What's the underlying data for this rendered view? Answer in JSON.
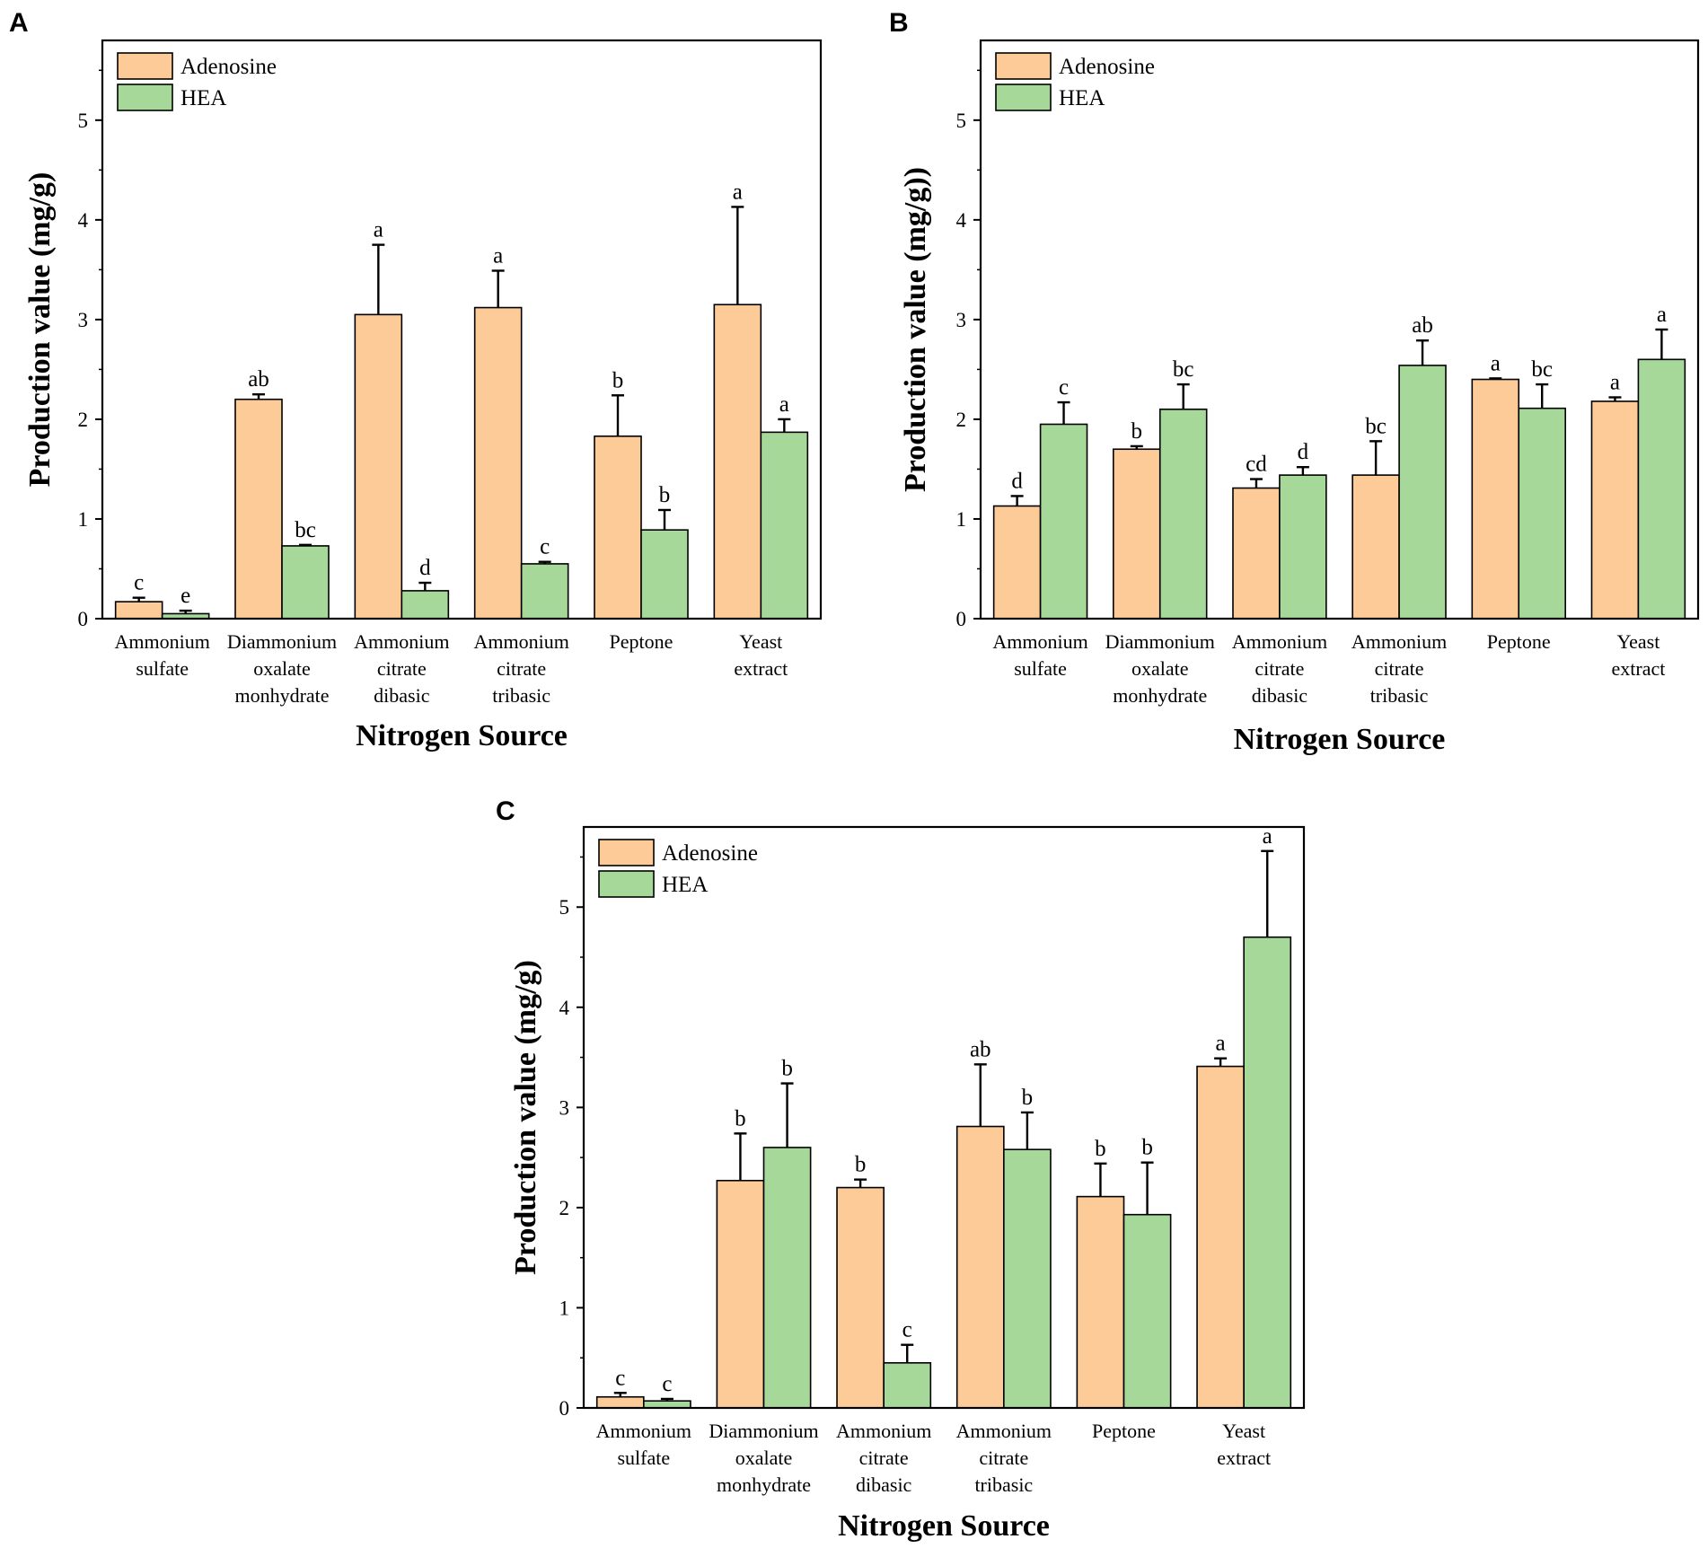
{
  "colors": {
    "adenosine": "#fdcb98",
    "hea": "#a6d89a",
    "axis": "#000000"
  },
  "chart_data": [
    {
      "panel": "A",
      "type": "bar",
      "title": "",
      "xlabel": "Nitrogen Source",
      "ylabel": "Production value (mg/g)",
      "ylim": [
        0,
        5.8
      ],
      "yticks": [
        0,
        1,
        2,
        3,
        4,
        5
      ],
      "categories": [
        [
          "Ammonium",
          "sulfate"
        ],
        [
          "Diammonium",
          "oxalate",
          "monhydrate"
        ],
        [
          "Ammonium",
          "citrate",
          "dibasic"
        ],
        [
          "Ammonium",
          "citrate",
          "tribasic"
        ],
        [
          "Peptone"
        ],
        [
          "Yeast",
          "extract"
        ]
      ],
      "series": [
        {
          "name": "Adenosine",
          "values": [
            0.17,
            2.2,
            3.05,
            3.12,
            1.83,
            3.15
          ],
          "errors": [
            0.04,
            0.05,
            0.7,
            0.37,
            0.41,
            0.98
          ],
          "labels": [
            "c",
            "ab",
            "a",
            "a",
            "b",
            "a"
          ]
        },
        {
          "name": "HEA",
          "values": [
            0.05,
            0.73,
            0.28,
            0.55,
            0.89,
            1.87
          ],
          "errors": [
            0.03,
            0.01,
            0.08,
            0.02,
            0.2,
            0.13
          ],
          "labels": [
            "e",
            "bc",
            "d",
            "c",
            "b",
            "a"
          ]
        }
      ]
    },
    {
      "panel": "B",
      "type": "bar",
      "title": "",
      "xlabel": "Nitrogen Source",
      "ylabel": "Production value (mg/g))",
      "ylim": [
        0,
        5.8
      ],
      "yticks": [
        0,
        1,
        2,
        3,
        4,
        5
      ],
      "categories": [
        [
          "Ammonium",
          "sulfate"
        ],
        [
          "Diammonium",
          "oxalate",
          "monhydrate"
        ],
        [
          "Ammonium",
          "citrate",
          "dibasic"
        ],
        [
          "Ammonium",
          "citrate",
          "tribasic"
        ],
        [
          "Peptone"
        ],
        [
          "Yeast",
          "extract"
        ]
      ],
      "series": [
        {
          "name": "Adenosine",
          "values": [
            1.13,
            1.7,
            1.31,
            1.44,
            2.4,
            2.18
          ],
          "errors": [
            0.1,
            0.03,
            0.09,
            0.34,
            0.01,
            0.04
          ],
          "labels": [
            "d",
            "b",
            "cd",
            "bc",
            "a",
            "a"
          ]
        },
        {
          "name": "HEA",
          "values": [
            1.95,
            2.1,
            1.44,
            2.54,
            2.11,
            2.6
          ],
          "errors": [
            0.22,
            0.25,
            0.08,
            0.25,
            0.24,
            0.3
          ],
          "labels": [
            "c",
            "bc",
            "d",
            "ab",
            "bc",
            "a"
          ]
        }
      ]
    },
    {
      "panel": "C",
      "type": "bar",
      "title": "",
      "xlabel": "Nitrogen Source",
      "ylabel": "Production value (mg/g)",
      "ylim": [
        0,
        5.8
      ],
      "yticks": [
        0,
        1,
        2,
        3,
        4,
        5
      ],
      "categories": [
        [
          "Ammonium",
          "sulfate"
        ],
        [
          "Diammonium",
          "oxalate",
          "monhydrate"
        ],
        [
          "Ammonium",
          "citrate",
          "dibasic"
        ],
        [
          "Ammonium",
          "citrate",
          "tribasic"
        ],
        [
          "Peptone"
        ],
        [
          "Yeast",
          "extract"
        ]
      ],
      "series": [
        {
          "name": "Adenosine",
          "values": [
            0.11,
            2.27,
            2.2,
            2.81,
            2.11,
            3.41
          ],
          "errors": [
            0.04,
            0.47,
            0.08,
            0.62,
            0.33,
            0.08
          ],
          "labels": [
            "c",
            "b",
            "b",
            "ab",
            "b",
            "a"
          ]
        },
        {
          "name": "HEA",
          "values": [
            0.07,
            2.6,
            0.45,
            2.58,
            1.93,
            4.7
          ],
          "errors": [
            0.02,
            0.64,
            0.18,
            0.37,
            0.52,
            0.86
          ],
          "labels": [
            "c",
            "b",
            "c",
            "b",
            "b",
            "a"
          ]
        }
      ]
    }
  ]
}
